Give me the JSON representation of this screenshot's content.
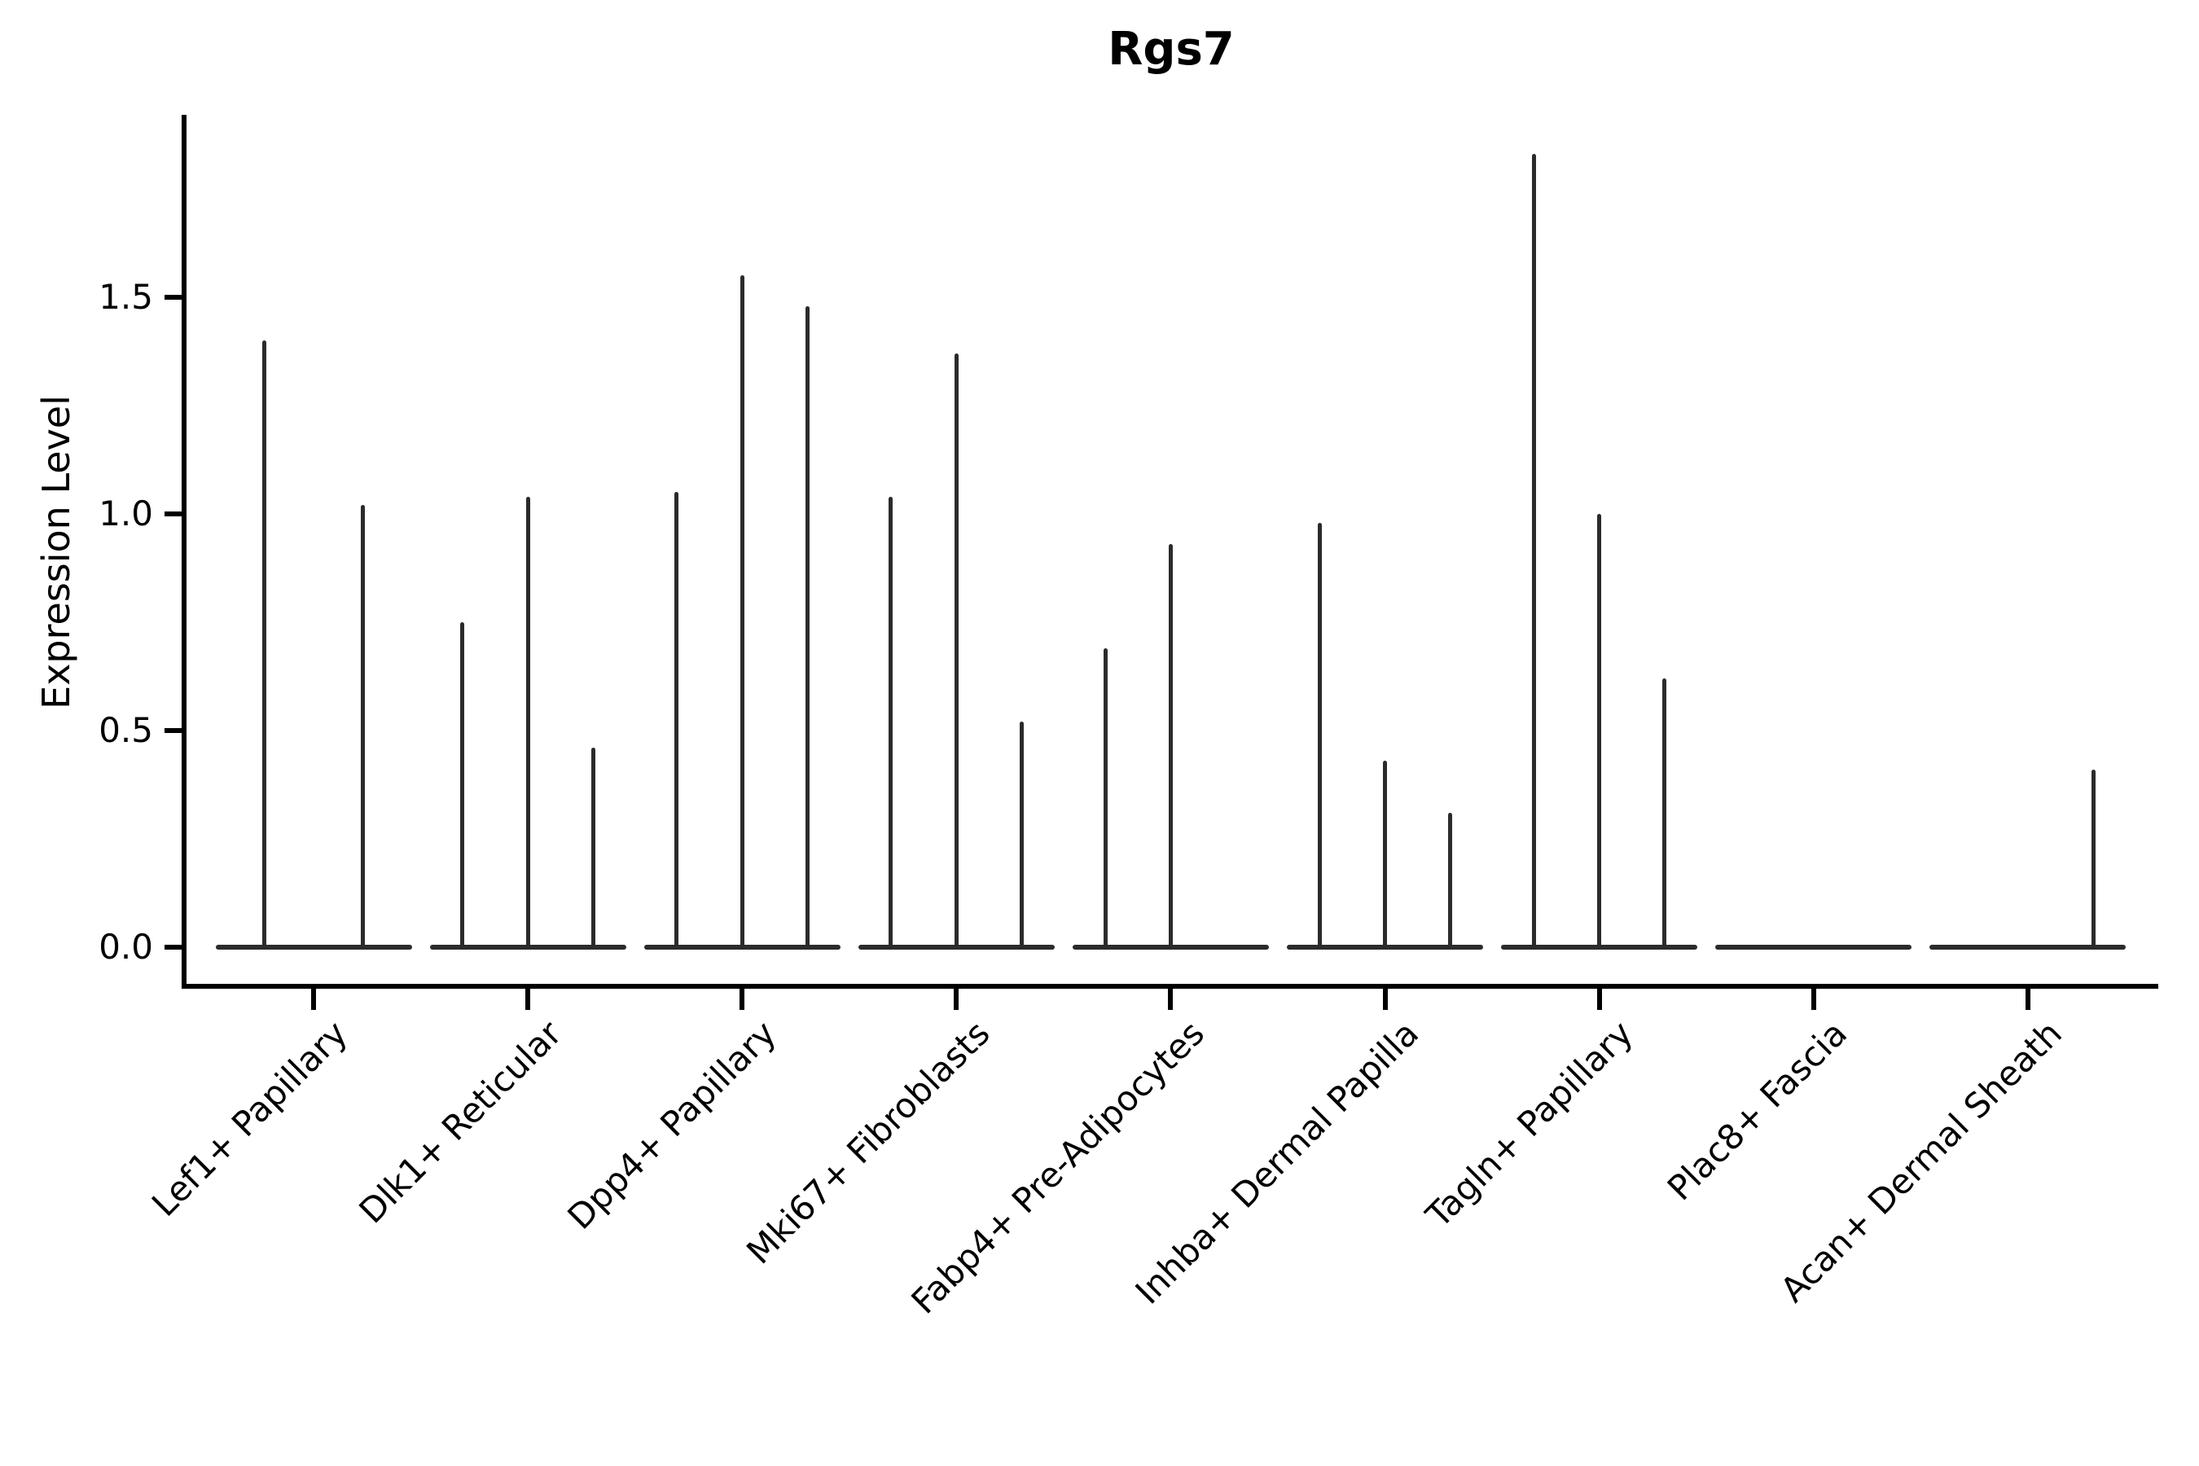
{
  "figure": {
    "title": "Rgs7",
    "background": "#ffffff",
    "text_color": "#000000",
    "violin_color": "#2b2b2b"
  },
  "chart_data": {
    "type": "violin",
    "title": "Rgs7",
    "xlabel": "",
    "ylabel": "Expression Level",
    "yticks": [
      "0.0",
      "0.5",
      "1.0",
      "1.5"
    ],
    "ylim": [
      -0.09,
      1.92
    ],
    "grid": false,
    "legend": false,
    "x_tick_rotation_deg": 45,
    "categories": [
      "Lef1+ Papillary",
      "Dlk1+ Reticular",
      "Dpp4+ Papillary",
      "Mki67+ Fibroblasts",
      "Fabp4+ Pre-Adipocytes",
      "Inhba+ Dermal Papilla",
      "Tagln+ Papillary",
      "Plac8+ Fascia",
      "Acan+ Dermal Sheath"
    ],
    "groups": [
      {
        "category": "Lef1+ Papillary",
        "n_violin_slots": 2,
        "spikes": [
          {
            "slot": 1,
            "max": 1.4
          },
          {
            "slot": 2,
            "max": 1.02
          }
        ]
      },
      {
        "category": "Dlk1+ Reticular",
        "n_violin_slots": 3,
        "spikes": [
          {
            "slot": 1,
            "max": 0.75
          },
          {
            "slot": 2,
            "max": 1.04
          },
          {
            "slot": 3,
            "max": 0.46
          }
        ]
      },
      {
        "category": "Dpp4+ Papillary",
        "n_violin_slots": 3,
        "spikes": [
          {
            "slot": 1,
            "max": 1.05
          },
          {
            "slot": 2,
            "max": 1.55
          },
          {
            "slot": 3,
            "max": 1.48
          }
        ]
      },
      {
        "category": "Mki67+ Fibroblasts",
        "n_violin_slots": 3,
        "spikes": [
          {
            "slot": 1,
            "max": 1.04
          },
          {
            "slot": 2,
            "max": 1.37
          },
          {
            "slot": 3,
            "max": 0.52
          }
        ]
      },
      {
        "category": "Fabp4+ Pre-Adipocytes",
        "n_violin_slots": 3,
        "spikes": [
          {
            "slot": 1,
            "max": 0.69
          },
          {
            "slot": 2,
            "max": 0.93
          }
        ]
      },
      {
        "category": "Inhba+ Dermal Papilla",
        "n_violin_slots": 3,
        "spikes": [
          {
            "slot": 1,
            "max": 0.98
          },
          {
            "slot": 2,
            "max": 0.43
          },
          {
            "slot": 3,
            "max": 0.31
          }
        ]
      },
      {
        "category": "Tagln+ Papillary",
        "n_violin_slots": 3,
        "spikes": [
          {
            "slot": 1,
            "max": 1.83
          },
          {
            "slot": 2,
            "max": 1.0
          },
          {
            "slot": 3,
            "max": 0.62
          }
        ]
      },
      {
        "category": "Plac8+ Fascia",
        "n_violin_slots": 3,
        "spikes": []
      },
      {
        "category": "Acan+ Dermal Sheath",
        "n_violin_slots": 3,
        "spikes": [
          {
            "slot": 3,
            "max": 0.41
          }
        ]
      }
    ]
  }
}
